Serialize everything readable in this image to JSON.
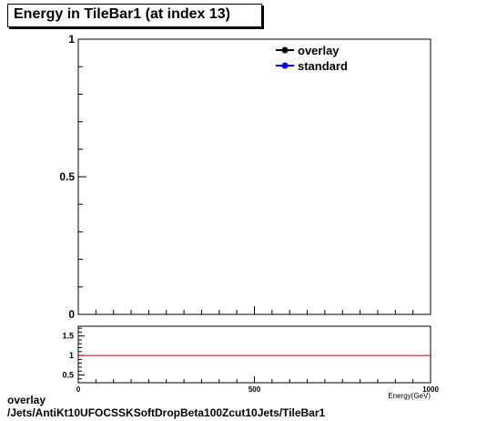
{
  "title": "Energy in TileBar1 (at index 13)",
  "chart_data": [
    {
      "type": "line",
      "title": "Energy in TileBar1 (at index 13)",
      "xlabel": "Energy(GeV)",
      "ylabel": "",
      "xlim": [
        0,
        1000
      ],
      "ylim": [
        0,
        1
      ],
      "yticks": [
        "0",
        "0.5",
        "1"
      ],
      "legend": "top-right",
      "series": [
        {
          "name": "overlay",
          "color": "#000000",
          "marker": "circle",
          "values": []
        },
        {
          "name": "standard",
          "color": "#0000ff",
          "marker": "circle",
          "values": []
        }
      ]
    },
    {
      "type": "line",
      "title": "",
      "xlabel": "Energy(GeV)",
      "xlim": [
        0,
        1000
      ],
      "ylim": [
        0.3,
        1.75
      ],
      "xticks": [
        "0",
        "500",
        "1000"
      ],
      "yticks": [
        "0.5",
        "1",
        "1.5"
      ],
      "reference_line": {
        "y": 1,
        "color": "#cc0000"
      }
    }
  ],
  "footer": {
    "line1": "overlay",
    "line2": "/Jets/AntiKt10UFOCSSKSoftDropBeta100Zcut10Jets/TileBar1"
  }
}
